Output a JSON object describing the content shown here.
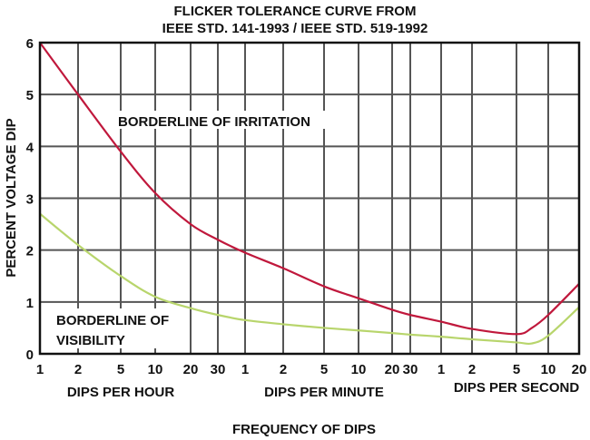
{
  "chart_data": {
    "type": "line",
    "title": [
      "FLICKER TOLERANCE CURVE FROM",
      "IEEE STD. 141-1993 / IEEE STD. 519-1992"
    ],
    "xlabel": "FREQUENCY OF DIPS",
    "ylabel": "PERCENT VOLTAGE DIP",
    "x_scale": "log",
    "x_unit_in_data": "dips per hour",
    "ylim": [
      0,
      6
    ],
    "yticks": [
      0,
      1,
      2,
      3,
      4,
      5,
      6
    ],
    "grid": true,
    "xticks": [
      {
        "label": "1",
        "value": 1
      },
      {
        "label": "2",
        "value": 2
      },
      {
        "label": "5",
        "value": 5
      },
      {
        "label": "10",
        "value": 10
      },
      {
        "label": "20",
        "value": 20
      },
      {
        "label": "30",
        "value": 30
      },
      {
        "label": "1",
        "value": 60
      },
      {
        "label": "2",
        "value": 120
      },
      {
        "label": "5",
        "value": 300
      },
      {
        "label": "10",
        "value": 600
      },
      {
        "label": "20",
        "value": 1200
      },
      {
        "label": "30",
        "value": 1800
      },
      {
        "label": "1",
        "value": 3600
      },
      {
        "label": "2",
        "value": 7200
      },
      {
        "label": "5",
        "value": 18000
      },
      {
        "label": "10",
        "value": 36000
      },
      {
        "label": "20",
        "value": 72000
      }
    ],
    "xgroups": [
      "DIPS PER HOUR",
      "DIPS PER MINUTE",
      "DIPS PER SECOND"
    ],
    "series": [
      {
        "name": "BORDERLINE OF IRRITATION",
        "color": "#c0183c",
        "x": [
          1,
          2,
          5,
          10,
          20,
          30,
          60,
          120,
          300,
          600,
          1200,
          1800,
          3600,
          7200,
          18000,
          25200,
          36000,
          72000
        ],
        "y": [
          6.0,
          5.0,
          3.9,
          3.1,
          2.5,
          2.2,
          1.95,
          1.65,
          1.3,
          1.07,
          0.85,
          0.75,
          0.62,
          0.48,
          0.38,
          0.5,
          0.75,
          1.35
        ]
      },
      {
        "name": "BORDERLINE OF VISIBILITY",
        "name_lines": [
          "BORDERLINE OF",
          "VISIBILITY"
        ],
        "color": "#b8d56c",
        "x": [
          1,
          2,
          5,
          10,
          20,
          30,
          60,
          120,
          300,
          600,
          1200,
          1800,
          3600,
          7200,
          18000,
          25200,
          36000,
          72000
        ],
        "y": [
          2.7,
          2.1,
          1.5,
          1.1,
          0.88,
          0.75,
          0.65,
          0.57,
          0.5,
          0.45,
          0.4,
          0.37,
          0.33,
          0.28,
          0.22,
          0.2,
          0.35,
          0.9
        ]
      }
    ]
  }
}
